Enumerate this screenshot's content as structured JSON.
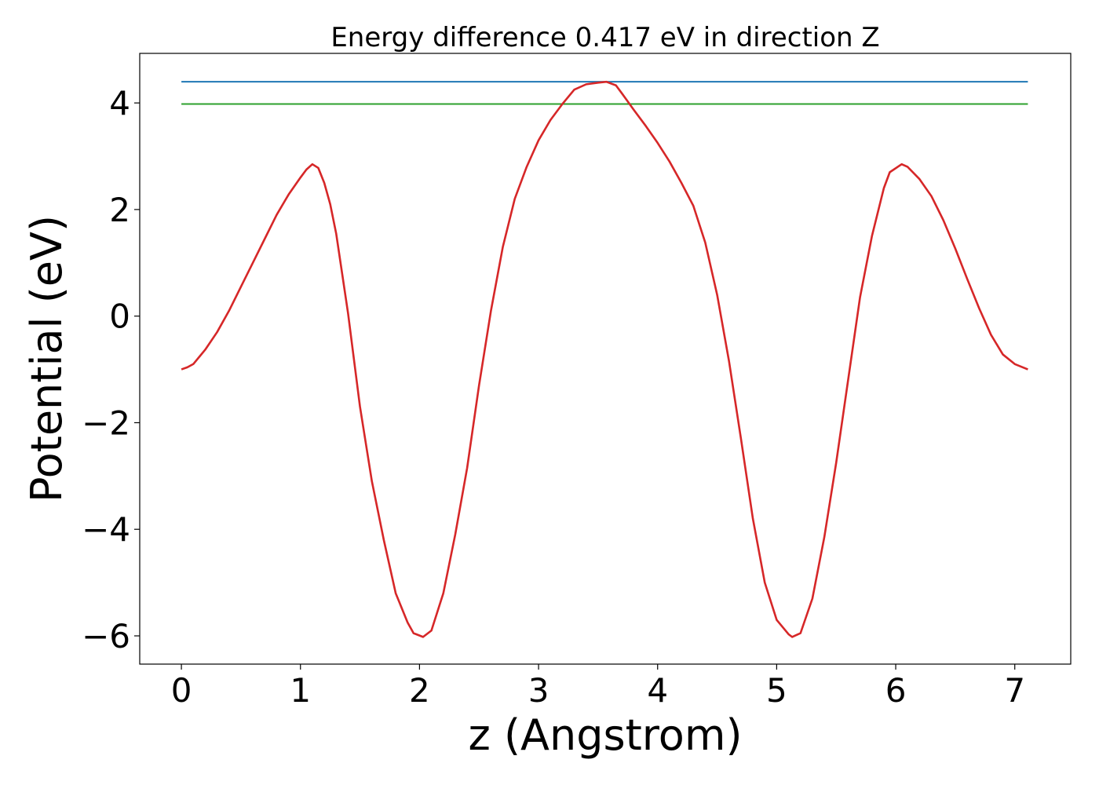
{
  "chart_data": {
    "type": "line",
    "title": "Energy difference 0.417 eV in direction Z",
    "xlabel": "z (Angstrom)",
    "ylabel": "Potential (eV)",
    "xlim": [
      -0.35,
      7.47
    ],
    "ylim": [
      -6.53,
      4.93
    ],
    "xticks": [
      0,
      1,
      2,
      3,
      4,
      5,
      6,
      7
    ],
    "yticks": [
      {
        "value": -6,
        "label": "−6"
      },
      {
        "value": -4,
        "label": "−4"
      },
      {
        "value": -2,
        "label": "−2"
      },
      0,
      2,
      4
    ],
    "grid": false,
    "series": [
      {
        "color": "#1f77b4",
        "x": [
          0,
          7.11
        ],
        "values": [
          4.397,
          4.397
        ]
      },
      {
        "color": "#2ca02c",
        "x": [
          0,
          7.11
        ],
        "values": [
          3.98,
          3.98
        ]
      },
      {
        "color": "#d62728",
        "x": [
          0,
          0.05,
          0.1,
          0.2,
          0.3,
          0.4,
          0.5,
          0.6,
          0.7,
          0.8,
          0.9,
          1.0,
          1.05,
          1.1,
          1.15,
          1.2,
          1.25,
          1.3,
          1.35,
          1.4,
          1.5,
          1.6,
          1.7,
          1.8,
          1.9,
          1.95,
          2.03,
          2.1,
          2.2,
          2.3,
          2.4,
          2.5,
          2.6,
          2.7,
          2.8,
          2.9,
          3.0,
          3.1,
          3.2,
          3.3,
          3.4,
          3.5,
          3.57,
          3.65,
          3.7,
          3.8,
          3.9,
          4.0,
          4.1,
          4.2,
          4.3,
          4.4,
          4.5,
          4.6,
          4.7,
          4.8,
          4.9,
          5.0,
          5.1,
          5.13,
          5.2,
          5.3,
          5.4,
          5.5,
          5.6,
          5.7,
          5.8,
          5.9,
          5.95,
          6.05,
          6.1,
          6.2,
          6.3,
          6.4,
          6.5,
          6.6,
          6.7,
          6.8,
          6.9,
          7.0,
          7.11
        ],
        "values": [
          -1.0,
          -0.96,
          -0.9,
          -0.63,
          -0.3,
          0.1,
          0.55,
          1.0,
          1.45,
          1.9,
          2.28,
          2.6,
          2.75,
          2.85,
          2.78,
          2.5,
          2.1,
          1.55,
          0.8,
          0.05,
          -1.7,
          -3.1,
          -4.2,
          -5.2,
          -5.75,
          -5.95,
          -6.02,
          -5.9,
          -5.2,
          -4.1,
          -2.85,
          -1.3,
          0.1,
          1.3,
          2.2,
          2.8,
          3.3,
          3.68,
          3.98,
          4.25,
          4.35,
          4.38,
          4.397,
          4.33,
          4.18,
          3.87,
          3.57,
          3.25,
          2.9,
          2.5,
          2.07,
          1.38,
          0.4,
          -0.85,
          -2.3,
          -3.8,
          -5.0,
          -5.7,
          -5.97,
          -6.02,
          -5.95,
          -5.3,
          -4.15,
          -2.75,
          -1.2,
          0.35,
          1.5,
          2.4,
          2.7,
          2.85,
          2.8,
          2.57,
          2.25,
          1.8,
          1.27,
          0.7,
          0.15,
          -0.35,
          -0.72,
          -0.9,
          -1.0
        ]
      }
    ]
  }
}
